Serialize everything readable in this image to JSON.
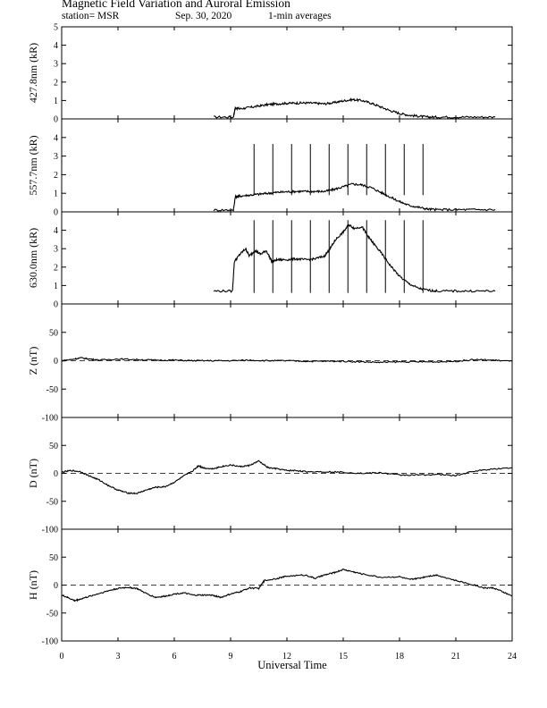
{
  "header": {
    "title": "Magnetic Field Variation and Auroral Emission",
    "station": "station= MSR",
    "date": "Sep. 30, 2020",
    "averaging": "1-min averages"
  },
  "chart_data": {
    "type": "line",
    "xlabel": "Universal Time",
    "xlim": [
      0,
      24
    ],
    "xticks": [
      0,
      3,
      6,
      9,
      12,
      15,
      18,
      21,
      24
    ],
    "panels": [
      {
        "key": "p4278",
        "ylabel": "427.8nm (kR)",
        "ylim": [
          0,
          5
        ],
        "yticks": [
          0,
          1,
          2,
          3,
          4,
          5
        ],
        "series": {
          "x": [
            8.1,
            9.15,
            9.25,
            9.5,
            10,
            10.5,
            11,
            11.5,
            12,
            12.5,
            13,
            13.5,
            14,
            14.5,
            15,
            15.5,
            16,
            16.5,
            17,
            17.5,
            18,
            18.5,
            19,
            19.5,
            20,
            21,
            22,
            23.1
          ],
          "y": [
            0.1,
            0.1,
            0.6,
            0.55,
            0.62,
            0.7,
            0.78,
            0.82,
            0.85,
            0.86,
            0.87,
            0.85,
            0.82,
            0.88,
            0.98,
            1.05,
            1.0,
            0.85,
            0.65,
            0.45,
            0.3,
            0.2,
            0.15,
            0.1,
            0.1,
            0.1,
            0.1,
            0.1
          ]
        },
        "spikes": []
      },
      {
        "key": "p5577",
        "ylabel": "557.7nm (kR)",
        "ylim": [
          0,
          5
        ],
        "yticks": [
          0,
          1,
          2,
          3,
          4
        ],
        "series": {
          "x": [
            8.1,
            9.15,
            9.25,
            9.5,
            10,
            10.5,
            11,
            11.5,
            12,
            12.5,
            13,
            13.5,
            14,
            14.5,
            15,
            15.5,
            16,
            16.5,
            17,
            17.5,
            18,
            18.5,
            19,
            19.5,
            20,
            21,
            22,
            23.1
          ],
          "y": [
            0.1,
            0.1,
            0.8,
            0.85,
            0.9,
            0.95,
            1.0,
            1.05,
            1.08,
            1.1,
            1.1,
            1.1,
            1.1,
            1.2,
            1.35,
            1.5,
            1.45,
            1.3,
            1.05,
            0.8,
            0.55,
            0.35,
            0.25,
            0.15,
            0.12,
            0.12,
            0.12,
            0.12
          ]
        },
        "spikes": [
          10.25,
          11.25,
          12.25,
          13.25,
          14.25,
          15.25,
          16.25,
          17.25,
          18.25,
          19.25
        ]
      },
      {
        "key": "p6300",
        "ylabel": "630.0nm (kR)",
        "ylim": [
          0,
          5
        ],
        "yticks": [
          0,
          1,
          2,
          3,
          4
        ],
        "series": {
          "x": [
            8.1,
            9.1,
            9.2,
            9.5,
            9.8,
            10,
            10.3,
            10.6,
            10.9,
            11.2,
            11.5,
            12,
            12.5,
            13,
            13.5,
            14,
            14.3,
            14.6,
            15,
            15.3,
            15.6,
            16,
            16.3,
            16.6,
            17,
            17.5,
            18,
            18.5,
            19,
            19.5,
            20,
            21,
            22,
            23.1
          ],
          "y": [
            0.7,
            0.7,
            2.3,
            2.7,
            3.0,
            2.6,
            2.9,
            2.7,
            2.9,
            2.3,
            2.4,
            2.4,
            2.45,
            2.4,
            2.45,
            2.6,
            3.0,
            3.5,
            3.9,
            4.3,
            4.1,
            4.2,
            3.7,
            3.3,
            2.8,
            2.1,
            1.5,
            1.1,
            0.85,
            0.75,
            0.7,
            0.7,
            0.7,
            0.7
          ]
        },
        "spikes": [
          10.25,
          11.25,
          12.25,
          13.25,
          14.25,
          15.25,
          16.25,
          17.25,
          18.25,
          19.25
        ]
      },
      {
        "key": "pZ",
        "ylabel": "Z (nT)",
        "ylim": [
          -100,
          100
        ],
        "yticks": [
          -100,
          -50,
          0,
          50
        ],
        "baseline": 0,
        "series": {
          "x": [
            0,
            0.5,
            1,
            1.5,
            2,
            3,
            4,
            5,
            6,
            7,
            8,
            9,
            10,
            11,
            12,
            13,
            14,
            15,
            16,
            17,
            18,
            19,
            20,
            21,
            22,
            23,
            24
          ],
          "y": [
            0,
            2,
            5,
            3,
            1,
            3,
            2,
            1,
            1,
            0,
            0,
            0,
            1,
            0,
            0,
            -1,
            -1,
            -1,
            -2,
            -3,
            -2,
            -2,
            -2,
            -1,
            2,
            1,
            -1
          ]
        }
      },
      {
        "key": "pD",
        "ylabel": "D (nT)",
        "ylim": [
          -100,
          100
        ],
        "yticks": [
          -100,
          -50,
          0,
          50
        ],
        "baseline": 0,
        "series": {
          "x": [
            0,
            0.5,
            1,
            1.5,
            2,
            2.5,
            3,
            3.5,
            4,
            4.5,
            5,
            5.5,
            6,
            6.5,
            7,
            7.3,
            7.5,
            8,
            8.5,
            9,
            9.5,
            10,
            10.5,
            11,
            11.5,
            12,
            12.5,
            13,
            14,
            15,
            16,
            17,
            18,
            19,
            20,
            21,
            22,
            23,
            24
          ],
          "y": [
            2,
            5,
            3,
            -5,
            -12,
            -22,
            -30,
            -35,
            -36,
            -30,
            -25,
            -24,
            -16,
            -5,
            5,
            14,
            10,
            8,
            12,
            15,
            12,
            14,
            22,
            10,
            8,
            5,
            5,
            3,
            3,
            2,
            0,
            1,
            -3,
            -3,
            -2,
            -4,
            4,
            8,
            10
          ]
        }
      },
      {
        "key": "pH",
        "ylabel": "H (nT)",
        "ylim": [
          -100,
          100
        ],
        "yticks": [
          -100,
          -50,
          0,
          50
        ],
        "baseline": 0,
        "series": {
          "x": [
            0,
            0.3,
            0.7,
            1,
            1.5,
            2,
            2.5,
            3,
            3.5,
            4,
            4.5,
            5,
            5.5,
            6,
            6.5,
            7,
            7.5,
            8,
            8.5,
            9,
            9.5,
            10,
            10.5,
            10.8,
            11.5,
            12,
            13,
            13.5,
            14,
            14.5,
            15,
            15.5,
            16,
            17,
            18,
            18.5,
            19,
            19.5,
            20,
            21,
            22,
            22.5,
            23,
            23.5,
            24
          ],
          "y": [
            -18,
            -22,
            -28,
            -25,
            -20,
            -15,
            -10,
            -6,
            -4,
            -6,
            -15,
            -22,
            -20,
            -16,
            -14,
            -18,
            -18,
            -18,
            -22,
            -16,
            -12,
            -5,
            -6,
            8,
            12,
            16,
            18,
            12,
            18,
            22,
            28,
            24,
            20,
            14,
            15,
            10,
            12,
            16,
            18,
            8,
            0,
            -5,
            -5,
            -12,
            -20
          ]
        }
      }
    ]
  }
}
